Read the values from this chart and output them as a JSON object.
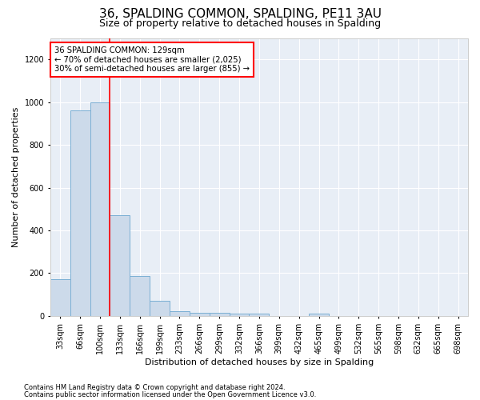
{
  "title": "36, SPALDING COMMON, SPALDING, PE11 3AU",
  "subtitle": "Size of property relative to detached houses in Spalding",
  "xlabel": "Distribution of detached houses by size in Spalding",
  "ylabel": "Number of detached properties",
  "categories": [
    "33sqm",
    "66sqm",
    "100sqm",
    "133sqm",
    "166sqm",
    "199sqm",
    "233sqm",
    "266sqm",
    "299sqm",
    "332sqm",
    "366sqm",
    "399sqm",
    "432sqm",
    "465sqm",
    "499sqm",
    "532sqm",
    "565sqm",
    "598sqm",
    "632sqm",
    "665sqm",
    "698sqm"
  ],
  "values": [
    170,
    960,
    1000,
    470,
    185,
    70,
    22,
    15,
    15,
    10,
    10,
    0,
    0,
    12,
    0,
    0,
    0,
    0,
    0,
    0,
    0
  ],
  "bar_color": "#ccdaea",
  "bar_edge_color": "#7bafd4",
  "annotation_text": "36 SPALDING COMMON: 129sqm\n← 70% of detached houses are smaller (2,025)\n30% of semi-detached houses are larger (855) →",
  "footnote1": "Contains HM Land Registry data © Crown copyright and database right 2024.",
  "footnote2": "Contains public sector information licensed under the Open Government Licence v3.0.",
  "ylim": [
    0,
    1300
  ],
  "yticks": [
    0,
    200,
    400,
    600,
    800,
    1000,
    1200
  ],
  "bg_color": "#e8eef6",
  "grid_color": "#ffffff",
  "title_fontsize": 11,
  "subtitle_fontsize": 9,
  "axis_label_fontsize": 8,
  "tick_fontsize": 7,
  "footnote_fontsize": 6,
  "red_line_idx": 2,
  "bar_width": 1.0
}
